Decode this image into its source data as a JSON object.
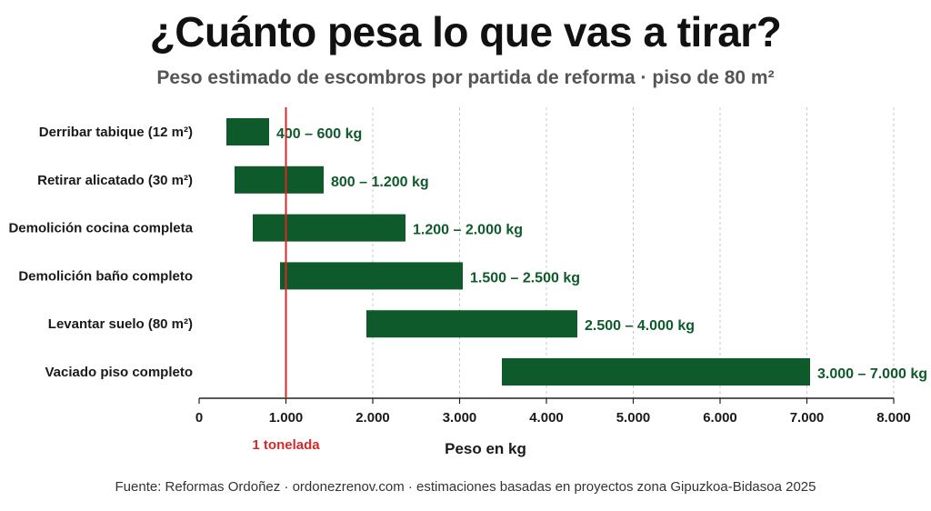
{
  "colors": {
    "bar": "#0e5a2a",
    "value_text": "#0e5a2a",
    "reference": "#d42a2a",
    "grid": "#c8c8c8",
    "axis": "#222222"
  },
  "footer": "Fuente: Reformas Ordoñez  ·  ordonezrenov.com  ·  estimaciones basadas en proyectos zona Gipuzkoa-Bidasoa 2025",
  "chart_data": {
    "type": "bar",
    "orientation": "horizontal-range",
    "title": "¿Cuánto pesa lo que vas a tirar?",
    "subtitle": "Peso estimado de escombros por partida de reforma · piso de 80 m²",
    "xlabel": "Peso en kg",
    "xlim": [
      0,
      8000
    ],
    "xticks": [
      0,
      1000,
      2000,
      3000,
      4000,
      5000,
      6000,
      7000,
      8000
    ],
    "xtick_labels": [
      "0",
      "1.000",
      "2.000",
      "3.000",
      "4.000",
      "5.000",
      "6.000",
      "7.000",
      "8.000"
    ],
    "grid": "vertical dashed",
    "reference_line": {
      "x": 1000,
      "label": "1 tonelada"
    },
    "categories": [
      "Derribar tabique (12 m²)",
      "Retirar alicatado (30 m²)",
      "Demolición cocina completa",
      "Demolición baño completo",
      "Levantar suelo (80 m²)",
      "Vaciado piso completo"
    ],
    "series": [
      {
        "ranges": [
          [
            400,
            600
          ],
          [
            800,
            1200
          ],
          [
            1200,
            2000
          ],
          [
            1500,
            2500
          ],
          [
            2500,
            4000
          ],
          [
            3000,
            7000
          ]
        ],
        "labels": [
          "400 – 600 kg",
          "800 – 1.200 kg",
          "1.200 – 2.000 kg",
          "1.500 – 2.500 kg",
          "2.500 – 4.000 kg",
          "3.000 – 7.000 kg"
        ]
      }
    ]
  }
}
